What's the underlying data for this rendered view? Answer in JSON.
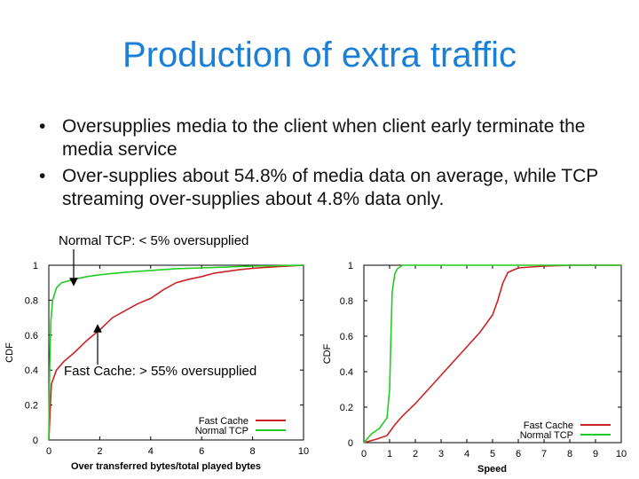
{
  "slide": {
    "title": "Production of extra traffic",
    "bullets": [
      "Oversupplies media to the client when client early terminate the media service",
      "Over-supplies about 54.8% of media data on average, while TCP streaming over-supplies about 4.8% data only."
    ],
    "bullet_glyph": "•"
  },
  "annotations": {
    "normal_tcp": "Normal TCP: < 5% oversupplied",
    "fast_cache": "Fast Cache: > 55% oversupplied"
  },
  "chart_data": [
    {
      "type": "line",
      "xlabel": "Over transferred bytes/total played bytes",
      "ylabel": "CDF",
      "xlim": [
        0,
        10
      ],
      "ylim": [
        0,
        1
      ],
      "xticks": [
        "0",
        "2",
        "4",
        "6",
        "8",
        "10"
      ],
      "yticks": [
        "0",
        "0.2",
        "0.4",
        "0.6",
        "0.8",
        "1"
      ],
      "legend_position": "bottom-right",
      "series": [
        {
          "name": "Fast Cache",
          "color": "#cc2222",
          "x": [
            0,
            0.1,
            0.3,
            0.6,
            1.0,
            1.5,
            2.0,
            2.5,
            3.0,
            3.5,
            4.0,
            4.5,
            5.0,
            5.5,
            6.0,
            6.5,
            7.0,
            7.5,
            8.0,
            8.5,
            9.0,
            10.0
          ],
          "y": [
            0,
            0.32,
            0.4,
            0.45,
            0.5,
            0.57,
            0.63,
            0.7,
            0.74,
            0.78,
            0.81,
            0.86,
            0.9,
            0.92,
            0.935,
            0.955,
            0.965,
            0.975,
            0.982,
            0.988,
            0.992,
            1.0
          ]
        },
        {
          "name": "Normal TCP",
          "color": "#22cc22",
          "x": [
            0,
            0.03,
            0.08,
            0.15,
            0.3,
            0.5,
            1.0,
            1.5,
            2.0,
            3.0,
            4.0,
            5.0,
            6.0,
            7.0,
            8.0,
            10.0
          ],
          "y": [
            0,
            0.4,
            0.68,
            0.8,
            0.87,
            0.9,
            0.92,
            0.935,
            0.945,
            0.96,
            0.97,
            0.98,
            0.985,
            0.99,
            0.995,
            1.0
          ]
        }
      ]
    },
    {
      "type": "line",
      "xlabel": "Speed",
      "ylabel": "CDF",
      "xlim": [
        0,
        10
      ],
      "ylim": [
        0,
        1
      ],
      "xticks": [
        "0",
        "1",
        "2",
        "3",
        "4",
        "5",
        "6",
        "7",
        "8",
        "9",
        "10"
      ],
      "yticks": [
        "0",
        "0.2",
        "0.4",
        "0.6",
        "0.8",
        "1"
      ],
      "legend_position": "bottom-right",
      "series": [
        {
          "name": "Fast Cache",
          "color": "#cc2222",
          "x": [
            0,
            0.5,
            0.9,
            1.0,
            1.2,
            1.5,
            2.0,
            2.5,
            3.0,
            3.5,
            4.0,
            4.5,
            5.0,
            5.2,
            5.4,
            5.6,
            6.0,
            7.0,
            8.0,
            10.0
          ],
          "y": [
            0,
            0.02,
            0.04,
            0.06,
            0.1,
            0.15,
            0.22,
            0.3,
            0.38,
            0.46,
            0.54,
            0.62,
            0.72,
            0.8,
            0.9,
            0.96,
            0.985,
            0.995,
            1.0,
            1.0
          ]
        },
        {
          "name": "Normal TCP",
          "color": "#22cc22",
          "x": [
            0,
            0.3,
            0.6,
            0.9,
            1.0,
            1.05,
            1.1,
            1.2,
            1.3,
            1.5,
            2.0,
            10.0
          ],
          "y": [
            0,
            0.05,
            0.08,
            0.14,
            0.3,
            0.6,
            0.85,
            0.95,
            0.98,
            1.0,
            1.0,
            1.0
          ]
        }
      ]
    }
  ]
}
